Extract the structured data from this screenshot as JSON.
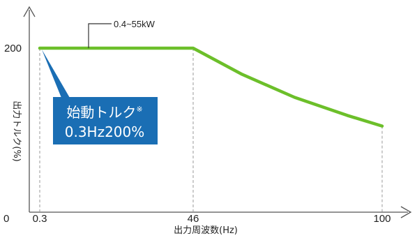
{
  "chart_data": {
    "type": "line",
    "xlabel": "出力周波数(Hz)",
    "ylabel": "出力トルク(%)",
    "x_ticks": [
      "0.3",
      "46",
      "100"
    ],
    "y_ticks": [
      "0",
      "200"
    ],
    "series": [
      {
        "name": "0.4~55kW",
        "color": "#6cbf2a",
        "x": [
          0.3,
          46,
          60,
          75,
          90,
          100
        ],
        "y": [
          200,
          200,
          168,
          140,
          118,
          105
        ]
      }
    ],
    "annotations": {
      "series_label": "0.4~55kW",
      "callout_line1": "始動トルク",
      "callout_mark": "※",
      "callout_line2": "0.3Hz200%"
    },
    "callout_color": "#1a6eb4",
    "grid": "dashed vertical guides at 0.3, 46, 100"
  }
}
